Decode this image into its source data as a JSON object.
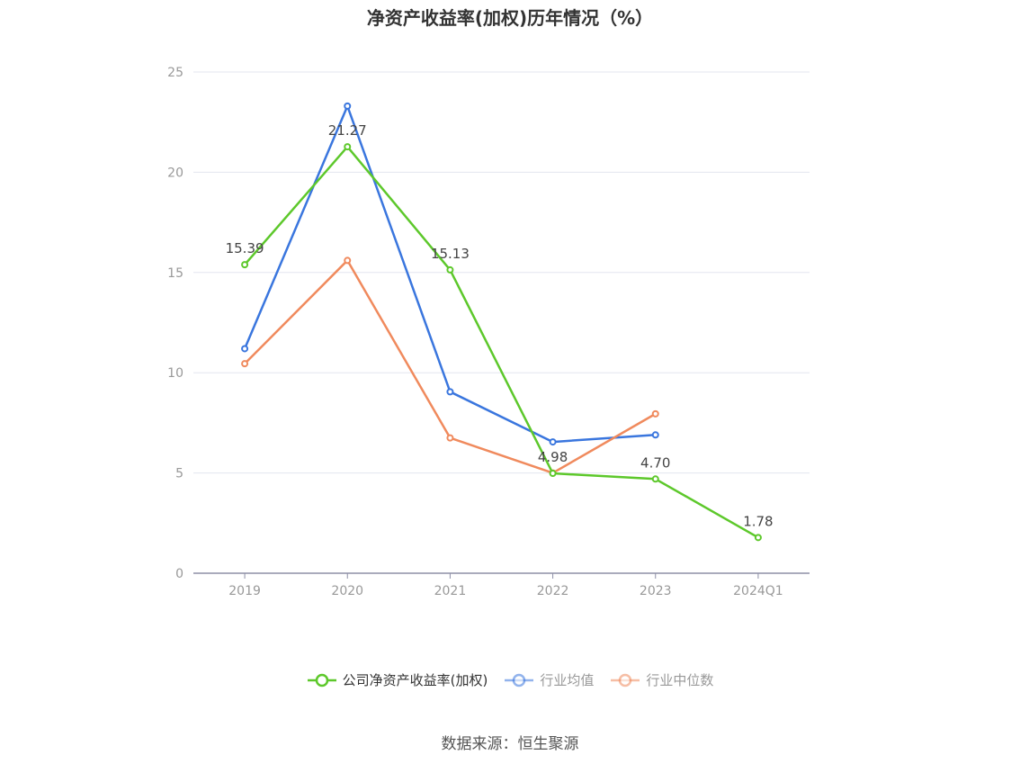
{
  "chart_data": {
    "type": "line",
    "title": "净资产收益率(加权)历年情况（%）",
    "categories": [
      "2019",
      "2020",
      "2021",
      "2022",
      "2023",
      "2024Q1"
    ],
    "ylim": [
      0,
      25
    ],
    "yticks": [
      "0",
      "5",
      "10",
      "15",
      "20",
      "25"
    ],
    "grid": true,
    "legend_position": "bottom",
    "series": [
      {
        "name": "公司净资产收益率(加权)",
        "color": "#5dc82b",
        "values": [
          15.39,
          21.27,
          15.13,
          4.98,
          4.7,
          1.78
        ],
        "labels": [
          "15.39",
          "21.27",
          "15.13",
          "4.98",
          "4.70",
          "1.78"
        ]
      },
      {
        "name": "行业均值",
        "color": "#3a76de",
        "values": [
          11.2,
          23.3,
          9.05,
          6.55,
          6.9,
          null
        ]
      },
      {
        "name": "行业中位数",
        "color": "#f08a5d",
        "values": [
          10.45,
          15.6,
          6.75,
          5.0,
          7.95,
          null
        ]
      }
    ]
  },
  "source": "数据来源：恒生聚源"
}
